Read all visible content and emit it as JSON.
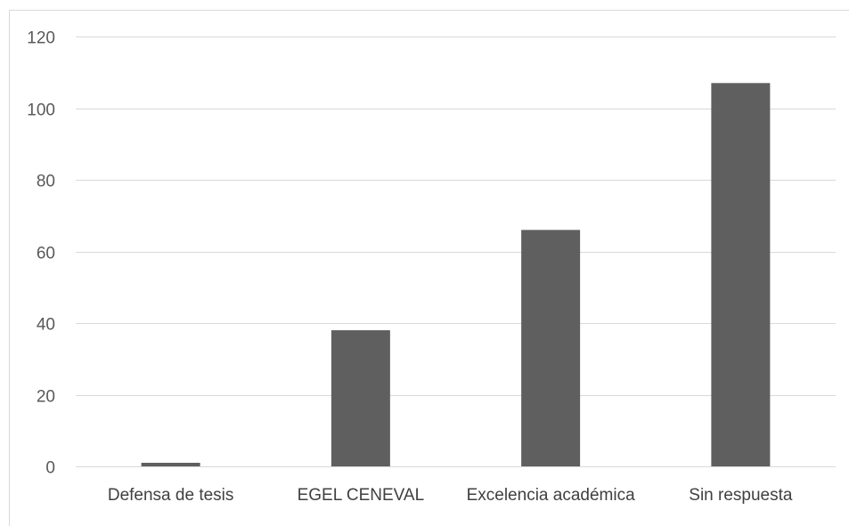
{
  "chart_data": {
    "type": "bar",
    "title": "",
    "xlabel": "",
    "ylabel": "",
    "categories": [
      "Defensa de tesis",
      "EGEL CENEVAL",
      "Excelencia académica",
      "Sin respuesta"
    ],
    "values": [
      1,
      38,
      66,
      107
    ],
    "ylim": [
      0,
      120
    ],
    "yticks": [
      0,
      20,
      40,
      60,
      80,
      100,
      120
    ],
    "grid": true,
    "legend": "none",
    "bar_color": "#5f5f5f",
    "grid_color": "#d9d9d9"
  }
}
